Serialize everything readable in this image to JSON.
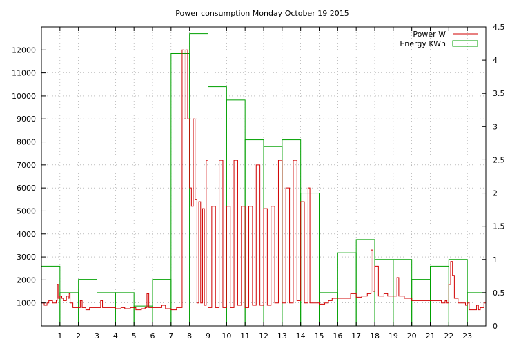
{
  "chart_data": {
    "type": "bar",
    "title": "Power consumption Monday October 19 2015",
    "x_ticks": [
      "1",
      "2",
      "3",
      "4",
      "5",
      "6",
      "7",
      "8",
      "9",
      "10",
      "11",
      "12",
      "13",
      "14",
      "15",
      "16",
      "17",
      "18",
      "19",
      "20",
      "21",
      "22",
      "23"
    ],
    "xlim": [
      0,
      24
    ],
    "y_left": {
      "ylim": [
        0,
        13000
      ],
      "ticks": [
        "1000",
        "2000",
        "3000",
        "4000",
        "5000",
        "6000",
        "7000",
        "8000",
        "9000",
        "10000",
        "11000",
        "12000"
      ]
    },
    "y_right": {
      "ylim": [
        0,
        4.5
      ],
      "ticks": [
        "0",
        "0.5",
        "1",
        "1.5",
        "2",
        "2.5",
        "3",
        "3.5",
        "4",
        "4.5"
      ]
    },
    "grid": true,
    "legend_position": "top-right",
    "series": [
      {
        "name": "Power W",
        "color": "#d00000",
        "axis": "left",
        "type": "line",
        "points": [
          [
            0.0,
            1000
          ],
          [
            0.15,
            900
          ],
          [
            0.3,
            1000
          ],
          [
            0.4,
            1100
          ],
          [
            0.6,
            1000
          ],
          [
            0.8,
            1100
          ],
          [
            0.85,
            1800
          ],
          [
            0.9,
            1200
          ],
          [
            1.0,
            1300
          ],
          [
            1.1,
            1200
          ],
          [
            1.2,
            1100
          ],
          [
            1.35,
            1300
          ],
          [
            1.45,
            1200
          ],
          [
            1.5,
            1400
          ],
          [
            1.55,
            1000
          ],
          [
            1.7,
            800
          ],
          [
            2.0,
            800
          ],
          [
            2.1,
            1100
          ],
          [
            2.2,
            800
          ],
          [
            2.4,
            700
          ],
          [
            2.6,
            800
          ],
          [
            3.0,
            800
          ],
          [
            3.2,
            1100
          ],
          [
            3.3,
            800
          ],
          [
            3.5,
            800
          ],
          [
            3.8,
            800
          ],
          [
            4.0,
            750
          ],
          [
            4.3,
            800
          ],
          [
            4.5,
            750
          ],
          [
            4.8,
            800
          ],
          [
            5.1,
            700
          ],
          [
            5.4,
            750
          ],
          [
            5.6,
            800
          ],
          [
            5.7,
            1400
          ],
          [
            5.8,
            800
          ],
          [
            6.2,
            800
          ],
          [
            6.5,
            900
          ],
          [
            6.7,
            750
          ],
          [
            7.0,
            700
          ],
          [
            7.3,
            800
          ],
          [
            7.6,
            12000
          ],
          [
            7.7,
            9000
          ],
          [
            7.8,
            12000
          ],
          [
            7.9,
            9000
          ],
          [
            8.0,
            6000
          ],
          [
            8.1,
            5200
          ],
          [
            8.2,
            9000
          ],
          [
            8.3,
            5500
          ],
          [
            8.4,
            1000
          ],
          [
            8.5,
            5400
          ],
          [
            8.6,
            1000
          ],
          [
            8.7,
            5100
          ],
          [
            8.8,
            900
          ],
          [
            8.9,
            7200
          ],
          [
            9.0,
            800
          ],
          [
            9.2,
            5200
          ],
          [
            9.4,
            800
          ],
          [
            9.6,
            7200
          ],
          [
            9.8,
            800
          ],
          [
            10.0,
            5200
          ],
          [
            10.2,
            800
          ],
          [
            10.4,
            7200
          ],
          [
            10.6,
            900
          ],
          [
            10.8,
            5200
          ],
          [
            11.0,
            800
          ],
          [
            11.2,
            5200
          ],
          [
            11.4,
            900
          ],
          [
            11.6,
            7000
          ],
          [
            11.8,
            900
          ],
          [
            12.0,
            5100
          ],
          [
            12.2,
            900
          ],
          [
            12.4,
            5200
          ],
          [
            12.6,
            1000
          ],
          [
            12.8,
            7200
          ],
          [
            13.0,
            1000
          ],
          [
            13.2,
            6000
          ],
          [
            13.4,
            1000
          ],
          [
            13.6,
            7200
          ],
          [
            13.8,
            1100
          ],
          [
            14.0,
            5400
          ],
          [
            14.2,
            1000
          ],
          [
            14.4,
            6000
          ],
          [
            14.5,
            1000
          ],
          [
            14.8,
            1000
          ],
          [
            15.0,
            950
          ],
          [
            15.3,
            1000
          ],
          [
            15.5,
            1100
          ],
          [
            15.7,
            1200
          ],
          [
            16.0,
            1200
          ],
          [
            16.3,
            1200
          ],
          [
            16.5,
            1200
          ],
          [
            16.7,
            1400
          ],
          [
            17.0,
            1250
          ],
          [
            17.3,
            1300
          ],
          [
            17.6,
            1400
          ],
          [
            17.8,
            3300
          ],
          [
            17.9,
            1500
          ],
          [
            18.0,
            2600
          ],
          [
            18.2,
            1300
          ],
          [
            18.5,
            1400
          ],
          [
            18.7,
            1300
          ],
          [
            19.0,
            1300
          ],
          [
            19.2,
            2100
          ],
          [
            19.3,
            1300
          ],
          [
            19.6,
            1200
          ],
          [
            19.8,
            1200
          ],
          [
            20.0,
            1100
          ],
          [
            20.3,
            1100
          ],
          [
            20.6,
            1100
          ],
          [
            20.9,
            1100
          ],
          [
            21.2,
            1100
          ],
          [
            21.4,
            1100
          ],
          [
            21.6,
            1000
          ],
          [
            21.8,
            1100
          ],
          [
            21.9,
            1000
          ],
          [
            22.0,
            1800
          ],
          [
            22.1,
            2800
          ],
          [
            22.2,
            2200
          ],
          [
            22.3,
            1200
          ],
          [
            22.5,
            1000
          ],
          [
            22.7,
            1000
          ],
          [
            22.9,
            900
          ],
          [
            23.0,
            1000
          ],
          [
            23.1,
            700
          ],
          [
            23.3,
            700
          ],
          [
            23.5,
            900
          ],
          [
            23.6,
            700
          ],
          [
            23.7,
            800
          ],
          [
            23.9,
            1000
          ],
          [
            24.0,
            900
          ]
        ]
      },
      {
        "name": "Energy KWh",
        "color": "#00a000",
        "axis": "right",
        "type": "step",
        "values": [
          0.9,
          0.5,
          0.7,
          0.5,
          0.5,
          0.3,
          0.7,
          4.1,
          4.4,
          3.6,
          3.4,
          2.8,
          2.7,
          2.8,
          2.0,
          0.5,
          1.1,
          1.3,
          1.0,
          1.0,
          0.7,
          0.9,
          1.0,
          0.5
        ]
      }
    ]
  }
}
